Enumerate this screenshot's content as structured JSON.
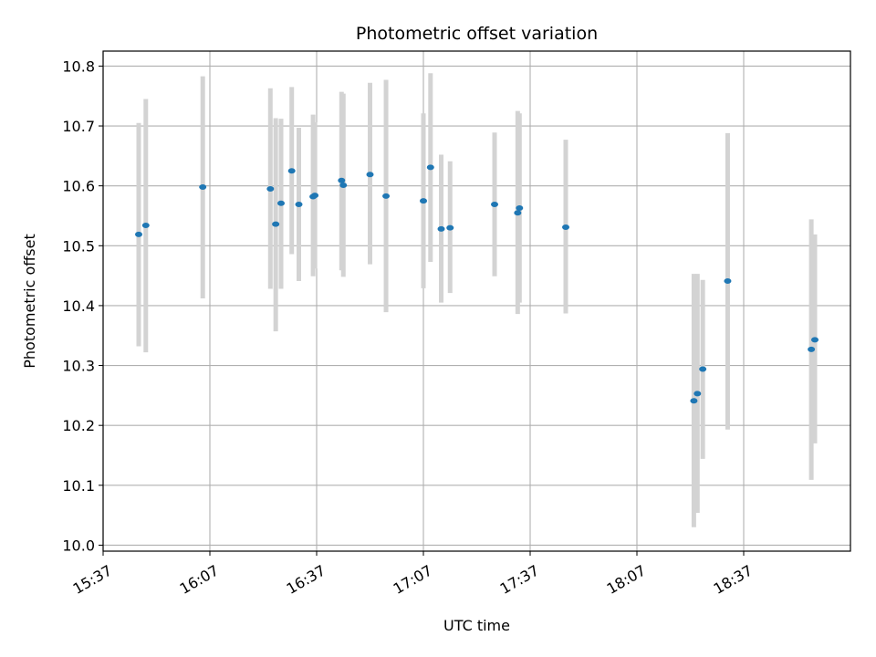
{
  "chart_data": {
    "type": "scatter",
    "title": "Photometric offset variation",
    "xlabel": "UTC time",
    "ylabel": "Photometric offset",
    "xlim": [
      "15:37",
      "19:07"
    ],
    "ylim": [
      9.99,
      10.825
    ],
    "x_ticks": [
      "15:37",
      "16:07",
      "16:37",
      "17:07",
      "17:37",
      "18:07",
      "18:37"
    ],
    "y_ticks": [
      "10.0",
      "10.1",
      "10.2",
      "10.3",
      "10.4",
      "10.5",
      "10.6",
      "10.7",
      "10.8"
    ],
    "grid": true,
    "marker_color": "#1f77b4",
    "errorbar_color": "#d3d3d3",
    "points": [
      {
        "x": "15:47:00",
        "y": 10.519,
        "ylow": 10.332,
        "yhigh": 10.705
      },
      {
        "x": "15:49:00",
        "y": 10.534,
        "ylow": 10.322,
        "yhigh": 10.745
      },
      {
        "x": "16:05:00",
        "y": 10.598,
        "ylow": 10.412,
        "yhigh": 10.783
      },
      {
        "x": "16:24:00",
        "y": 10.595,
        "ylow": 10.428,
        "yhigh": 10.763
      },
      {
        "x": "16:25:30",
        "y": 10.536,
        "ylow": 10.357,
        "yhigh": 10.713
      },
      {
        "x": "16:27:00",
        "y": 10.571,
        "ylow": 10.428,
        "yhigh": 10.712
      },
      {
        "x": "16:30:00",
        "y": 10.625,
        "ylow": 10.486,
        "yhigh": 10.765
      },
      {
        "x": "16:32:00",
        "y": 10.569,
        "ylow": 10.441,
        "yhigh": 10.697
      },
      {
        "x": "16:36:00",
        "y": 10.582,
        "ylow": 10.449,
        "yhigh": 10.719
      },
      {
        "x": "16:36:30",
        "y": 10.584,
        "ylow": 10.462,
        "yhigh": 10.706
      },
      {
        "x": "16:44:00",
        "y": 10.609,
        "ylow": 10.459,
        "yhigh": 10.757
      },
      {
        "x": "16:44:30",
        "y": 10.601,
        "ylow": 10.448,
        "yhigh": 10.754
      },
      {
        "x": "16:52:00",
        "y": 10.619,
        "ylow": 10.469,
        "yhigh": 10.772
      },
      {
        "x": "16:56:30",
        "y": 10.583,
        "ylow": 10.389,
        "yhigh": 10.777
      },
      {
        "x": "17:07:00",
        "y": 10.575,
        "ylow": 10.429,
        "yhigh": 10.721
      },
      {
        "x": "17:09:00",
        "y": 10.631,
        "ylow": 10.473,
        "yhigh": 10.788
      },
      {
        "x": "17:12:00",
        "y": 10.528,
        "ylow": 10.405,
        "yhigh": 10.652
      },
      {
        "x": "17:14:30",
        "y": 10.53,
        "ylow": 10.421,
        "yhigh": 10.641
      },
      {
        "x": "17:27:00",
        "y": 10.569,
        "ylow": 10.449,
        "yhigh": 10.689
      },
      {
        "x": "17:33:30",
        "y": 10.555,
        "ylow": 10.386,
        "yhigh": 10.725
      },
      {
        "x": "17:34:00",
        "y": 10.563,
        "ylow": 10.405,
        "yhigh": 10.721
      },
      {
        "x": "17:47:00",
        "y": 10.531,
        "ylow": 10.387,
        "yhigh": 10.677
      },
      {
        "x": "18:23:00",
        "y": 10.241,
        "ylow": 10.03,
        "yhigh": 10.453
      },
      {
        "x": "18:24:00",
        "y": 10.253,
        "ylow": 10.054,
        "yhigh": 10.453
      },
      {
        "x": "18:25:30",
        "y": 10.294,
        "ylow": 10.144,
        "yhigh": 10.443
      },
      {
        "x": "18:32:30",
        "y": 10.441,
        "ylow": 10.193,
        "yhigh": 10.688
      },
      {
        "x": "18:56:00",
        "y": 10.327,
        "ylow": 10.109,
        "yhigh": 10.544
      },
      {
        "x": "18:57:00",
        "y": 10.343,
        "ylow": 10.17,
        "yhigh": 10.519
      }
    ]
  }
}
